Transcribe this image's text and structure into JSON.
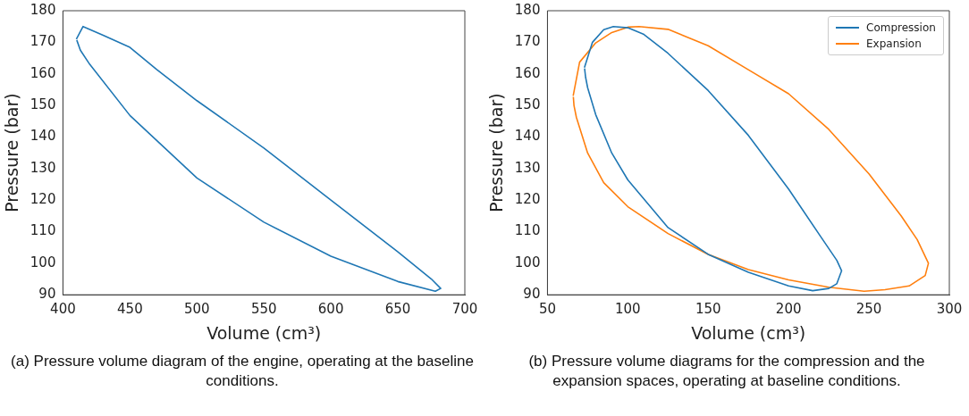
{
  "chart_data": [
    {
      "type": "line",
      "xlabel": "Volume (cm³)",
      "ylabel": "Pressure (bar)",
      "xlim": [
        400,
        700
      ],
      "xticks": [
        400,
        450,
        500,
        550,
        600,
        650,
        700
      ],
      "ylim": [
        90,
        180
      ],
      "yticks": [
        90,
        100,
        110,
        120,
        130,
        140,
        150,
        160,
        170,
        180
      ],
      "grid": false,
      "legend": false,
      "marker": "none",
      "annotations": [
        "(a) Pressure volume diagram of the engine, operating at the baseline conditions."
      ],
      "series": [
        {
          "color": "#1f77b4",
          "x": [
            410,
            415,
            430,
            450,
            470,
            500,
            550,
            600,
            650,
            675,
            682,
            678,
            650,
            600,
            550,
            500,
            450,
            420,
            413,
            410.3
          ],
          "values": [
            171,
            175,
            172.2,
            168.4,
            161.4,
            151.5,
            136.5,
            120,
            103.6,
            95,
            92,
            91.1,
            94.2,
            102.2,
            113,
            127,
            146.8,
            163,
            167.5,
            170.7
          ]
        }
      ]
    },
    {
      "type": "line",
      "xlabel": "Volume (cm³)",
      "ylabel": "Pressure (bar)",
      "xlim": [
        50,
        300
      ],
      "xticks": [
        50,
        100,
        150,
        200,
        250,
        300
      ],
      "ylim": [
        90,
        180
      ],
      "yticks": [
        90,
        100,
        110,
        120,
        130,
        140,
        150,
        160,
        170,
        180
      ],
      "grid": false,
      "legend": "top right",
      "marker": "none",
      "annotations": [
        "(b) Pressure volume diagrams for the compression and the expansion spaces, operating at baseline conditions."
      ],
      "series": [
        {
          "name": "Compression",
          "color": "#1f77b4",
          "x": [
            73,
            78,
            85,
            91,
            100,
            110,
            125,
            150,
            175,
            200,
            220,
            230,
            233,
            230,
            225,
            215,
            200,
            175,
            150,
            125,
            100,
            90,
            80,
            75,
            73.7,
            73.1
          ],
          "values": [
            162,
            170,
            174,
            175,
            174.6,
            172.5,
            166.5,
            154.7,
            140.5,
            123.5,
            108.4,
            100.9,
            97.6,
            93.5,
            92,
            91.3,
            92.8,
            97.1,
            102.8,
            111.3,
            126.4,
            134.9,
            147.1,
            155.6,
            159,
            161.7
          ]
        },
        {
          "name": "Expansion",
          "color": "#ff7f0e",
          "x": [
            66,
            70,
            80,
            90,
            100,
            107,
            125,
            150,
            175,
            200,
            225,
            250,
            270,
            280,
            287,
            285,
            275,
            260,
            247,
            225,
            200,
            175,
            150,
            125,
            100,
            85,
            75,
            68,
            66.5,
            66.1
          ],
          "values": [
            153,
            163.7,
            169.8,
            173.1,
            174.8,
            175,
            174.1,
            168.9,
            161.3,
            153.7,
            142.4,
            128.3,
            115,
            107.5,
            100,
            96.1,
            92.8,
            91.6,
            91.1,
            92.4,
            94.7,
            98,
            102.8,
            109.4,
            117.9,
            125.5,
            134.9,
            146.2,
            150,
            152.7
          ]
        }
      ]
    }
  ]
}
